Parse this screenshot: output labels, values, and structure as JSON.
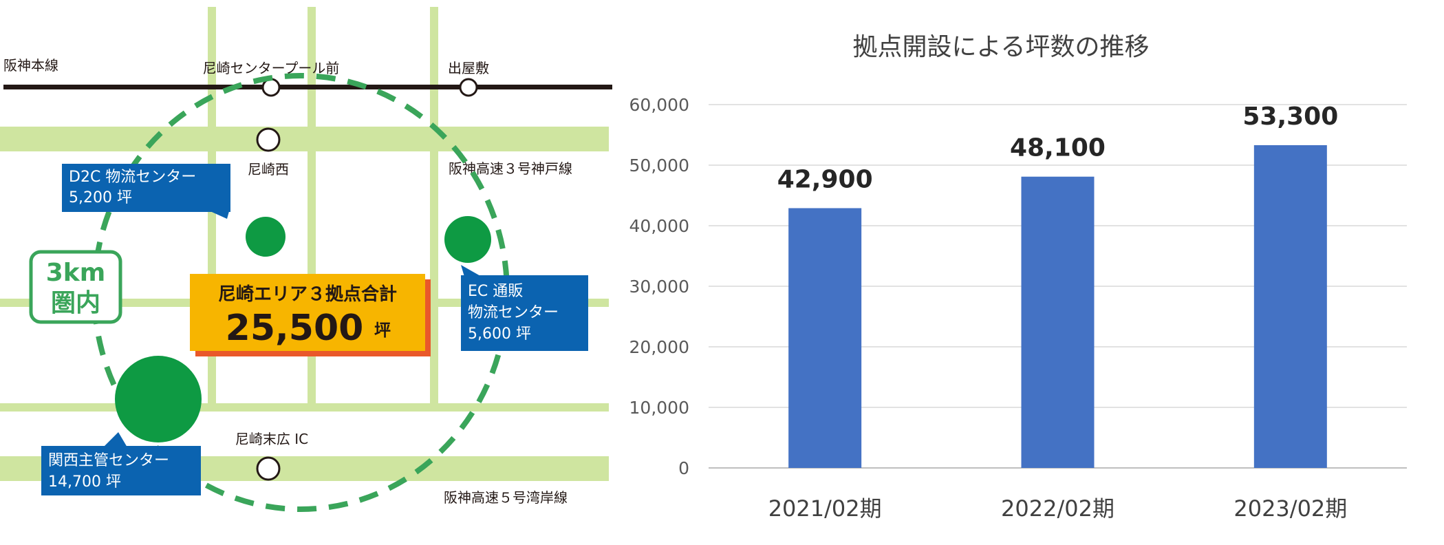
{
  "map": {
    "railway_label": "阪神本線",
    "station_center_pool": "尼崎センタープール前",
    "station_deyashiki": "出屋敷",
    "station_amagasaki_nishi": "尼崎西",
    "highway_kobe": "阪神高速３号神戸線",
    "ic_label": "尼崎末広 IC",
    "highway_wangan": "阪神高速５号湾岸線",
    "radius_line1": "3km",
    "radius_line2": "圏内",
    "d2c_line1": "D2C 物流センター",
    "d2c_line2": "5,200 坪",
    "ec_line1": "EC 通販",
    "ec_line2": "物流センター",
    "ec_line3": "5,600 坪",
    "kansai_line1": "関西主管センター",
    "kansai_line2": "14,700 坪",
    "total_title": "尼崎エリア３拠点合計",
    "total_value": "25,500",
    "total_unit": "坪",
    "colors": {
      "road": "#cfe5a0",
      "rail": "#231815",
      "circle": "#3aa55a",
      "facility": "#0e9a43",
      "callout": "#0b63b0",
      "total_bg": "#f7b500"
    }
  },
  "chart_data": {
    "type": "bar",
    "title": "拠点開設による坪数の推移",
    "categories": [
      "2021/02期",
      "2022/02期",
      "2023/02期"
    ],
    "values": [
      42900,
      48100,
      53300
    ],
    "value_labels": [
      "42,900",
      "48,100",
      "53,300"
    ],
    "yticks": [
      "0",
      "10,000",
      "20,000",
      "30,000",
      "40,000",
      "50,000",
      "60,000"
    ],
    "ylim": [
      0,
      60000
    ],
    "grid": true,
    "legend": "none",
    "bar_color": "#4472c4"
  }
}
